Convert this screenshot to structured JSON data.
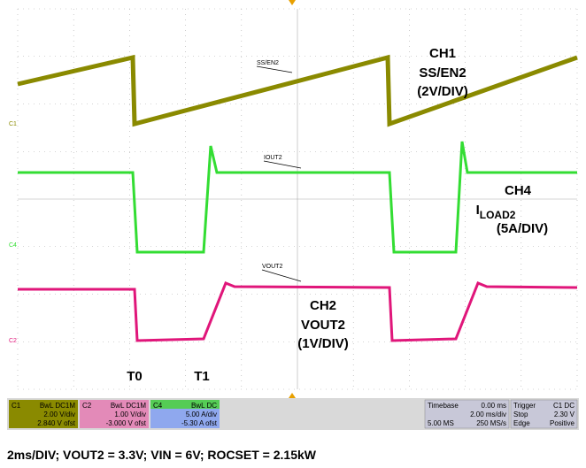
{
  "traces": [
    {
      "label": "SS/EN2",
      "marker": "C1"
    },
    {
      "label": "IOUT2",
      "marker": "C4"
    },
    {
      "label": "VOUT2",
      "marker": "C2"
    }
  ],
  "annotations": {
    "ch1": [
      "CH1",
      "SS/EN2",
      "(2V/DIV)"
    ],
    "ch4": {
      "title": "CH4",
      "name": "I",
      "sub": "LOAD2",
      "scale": "(5A/DIV)"
    },
    "ch2": [
      "CH2",
      "VOUT2",
      "(1V/DIV)"
    ],
    "t0": "T0",
    "t1": "T1"
  },
  "status": {
    "channels": [
      {
        "id": "C1",
        "tag": "BwL DC1M",
        "scale": "2.00 V/div",
        "offset": "2.840 V ofst"
      },
      {
        "id": "C2",
        "tag": "BwL DC1M",
        "scale": "1.00 V/div",
        "offset": "-3.000 V ofst"
      },
      {
        "id": "C4",
        "tag": "BwL DC",
        "scale": "5.00 A/div",
        "offset": "-5.30 A ofst"
      }
    ],
    "timebase": {
      "title": "Timebase",
      "delay": "0.00 ms",
      "scale": "2.00 ms/div",
      "samples": "5.00 MS",
      "rate": "250 MS/s"
    },
    "trigger": {
      "title": "Trigger",
      "src": "C1 DC",
      "mode": "Stop",
      "level": "2.30 V",
      "type": "Edge",
      "slope": "Positive"
    }
  },
  "caption": "2ms/DIV; VOUT2 = 3.3V; VIN = 6V; ROCSET = 2.15kW"
}
